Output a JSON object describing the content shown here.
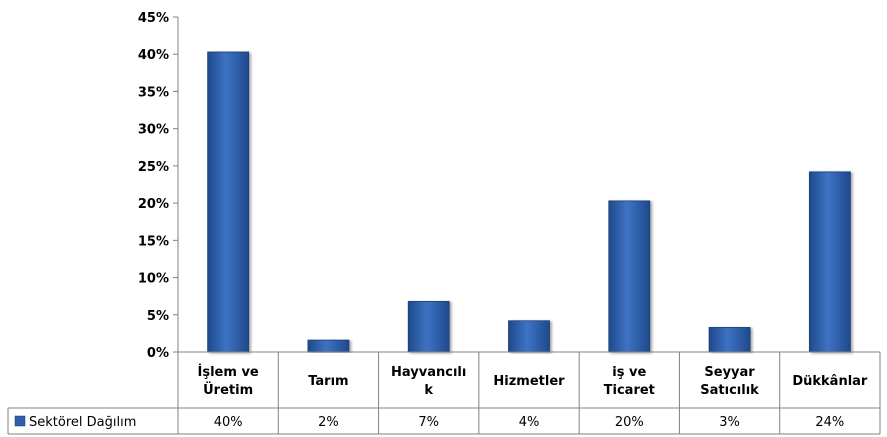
{
  "chart_data": {
    "type": "bar",
    "categories": [
      [
        "İşlem ve",
        "Üretim"
      ],
      [
        "Tarım"
      ],
      [
        "Hayvancılı",
        "k"
      ],
      [
        "Hizmetler"
      ],
      [
        "iş ve",
        "Ticaret"
      ],
      [
        "Seyyar",
        "Satıcılık"
      ],
      [
        "Dükkânlar"
      ]
    ],
    "series": [
      {
        "name": "Sektörel Dağılım",
        "values": [
          40.3,
          1.6,
          6.8,
          4.2,
          20.3,
          3.3,
          24.2
        ],
        "labels": [
          "40%",
          "2%",
          "7%",
          "4%",
          "20%",
          "3%",
          "24%"
        ],
        "color": "#2E5FA8"
      }
    ],
    "ylim": [
      0,
      45
    ],
    "yticks": [
      "0%",
      "5%",
      "10%",
      "15%",
      "20%",
      "25%",
      "30%",
      "35%",
      "40%",
      "45%"
    ],
    "grid": false,
    "legend": "data-table"
  }
}
